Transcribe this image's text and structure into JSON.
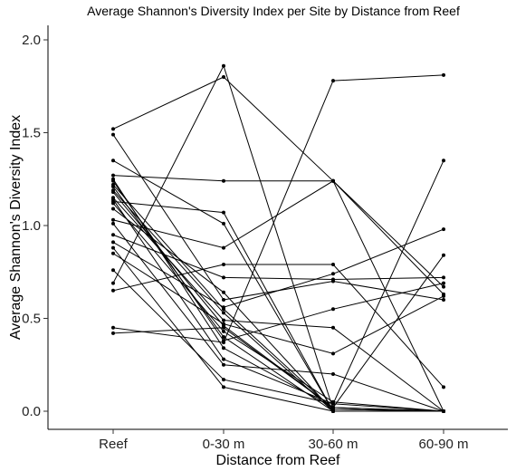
{
  "chart_data": {
    "type": "line",
    "title": "Average Shannon's Diversity Index per Site by Distance from Reef",
    "xlabel": "Distance from Reef",
    "ylabel": "Average Shannon's Diversity Index",
    "categories": [
      "Reef",
      "0-30 m",
      "30-60 m",
      "60-90 m"
    ],
    "yticks": [
      0.0,
      0.5,
      1.0,
      1.5,
      2.0
    ],
    "ytick_labels": [
      "0.0",
      "0.5",
      "1.0",
      "1.5",
      "2.0"
    ],
    "ylim": [
      -0.1,
      2.1
    ],
    "grid": false,
    "legend": "none",
    "series": [
      {
        "values": [
          1.52,
          1.8,
          1.24,
          0.63
        ]
      },
      {
        "values": [
          1.49,
          0.6,
          0.7,
          0.6
        ]
      },
      {
        "values": [
          1.35,
          1.01,
          0.0,
          0.0
        ]
      },
      {
        "values": [
          1.27,
          1.24,
          1.24,
          0.0
        ]
      },
      {
        "values": [
          1.25,
          0.34,
          0.02,
          0.0
        ]
      },
      {
        "values": [
          1.24,
          0.38,
          0.55,
          0.69
        ]
      },
      {
        "values": [
          1.22,
          0.55,
          0.01,
          0.0
        ]
      },
      {
        "values": [
          1.21,
          0.4,
          0.0,
          0.0
        ]
      },
      {
        "values": [
          1.18,
          0.46,
          0.02,
          0.0
        ]
      },
      {
        "values": [
          1.15,
          0.49,
          0.45,
          0.0
        ]
      },
      {
        "values": [
          1.14,
          0.28,
          0.04,
          0.0
        ]
      },
      {
        "values": [
          1.13,
          1.07,
          0.0,
          0.0
        ]
      },
      {
        "values": [
          1.12,
          0.43,
          0.05,
          0.0
        ]
      },
      {
        "values": [
          1.09,
          0.64,
          0.0,
          0.0
        ]
      },
      {
        "values": [
          1.03,
          0.88,
          1.24,
          0.67
        ]
      },
      {
        "values": [
          1.01,
          0.25,
          0.2,
          0.0
        ]
      },
      {
        "values": [
          0.95,
          0.72,
          0.71,
          0.72
        ]
      },
      {
        "values": [
          0.91,
          0.56,
          0.74,
          0.98
        ]
      },
      {
        "values": [
          0.85,
          0.47,
          0.31,
          0.62
        ]
      },
      {
        "values": [
          0.76,
          0.17,
          0.04,
          1.35
        ]
      },
      {
        "values": [
          0.69,
          1.86,
          0.01,
          0.0
        ]
      },
      {
        "values": [
          0.65,
          0.79,
          0.79,
          0.13
        ]
      },
      {
        "values": [
          0.45,
          0.37,
          1.78,
          1.81
        ]
      },
      {
        "values": [
          0.42,
          0.45,
          0.02,
          0.84
        ]
      },
      {
        "values": [
          0.88,
          0.13,
          0.0,
          0.0
        ]
      },
      {
        "values": [
          1.19,
          0.53,
          0.0,
          0.0
        ]
      }
    ]
  }
}
